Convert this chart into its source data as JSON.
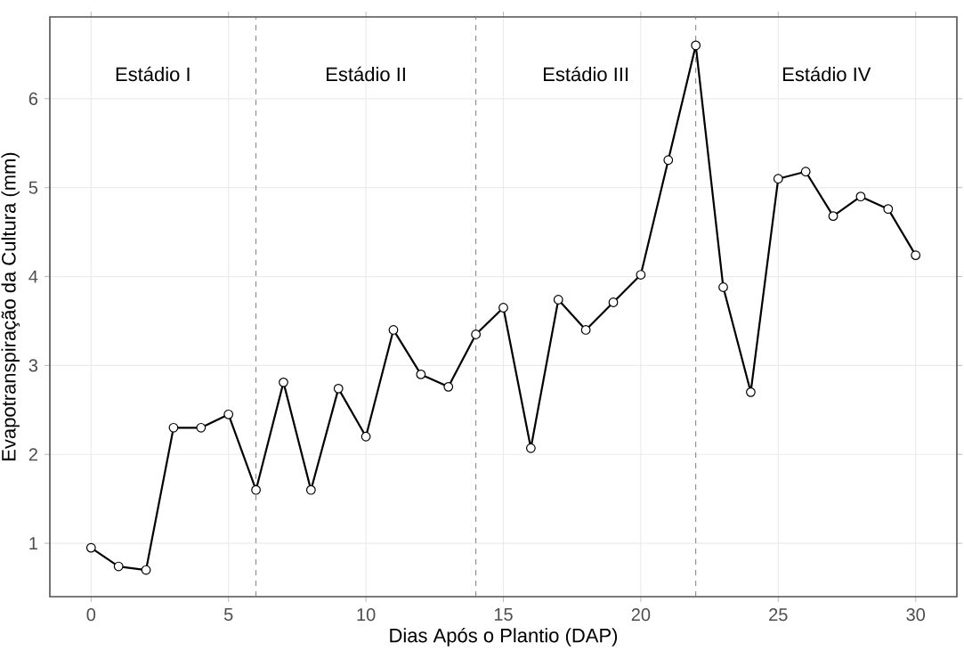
{
  "chart_data": {
    "type": "line",
    "xlabel": "Dias Após o Plantio (DAP)",
    "ylabel": "Evapotranspiração da Cultura (mm)",
    "x": [
      0,
      1,
      2,
      3,
      4,
      5,
      6,
      7,
      8,
      9,
      10,
      11,
      12,
      13,
      14,
      15,
      16,
      17,
      18,
      19,
      20,
      21,
      22,
      23,
      24,
      25,
      26,
      27,
      28,
      29,
      30
    ],
    "series": [
      {
        "color": "#000000",
        "values": [
          0.95,
          0.74,
          0.7,
          2.3,
          2.3,
          2.45,
          1.6,
          2.81,
          1.6,
          2.74,
          2.2,
          3.4,
          2.9,
          2.76,
          3.35,
          3.65,
          2.07,
          3.74,
          3.4,
          3.71,
          4.02,
          5.31,
          6.6,
          3.88,
          2.7,
          5.1,
          5.18,
          4.68,
          4.9,
          4.76,
          4.24
        ]
      }
    ],
    "xlim": [
      -1.5,
      31.5
    ],
    "ylim": [
      0.4,
      6.92
    ],
    "xticks": [
      0,
      5,
      10,
      15,
      20,
      25,
      30
    ],
    "yticks": [
      1,
      2,
      3,
      4,
      5,
      6
    ],
    "grid": true,
    "marker": "circle",
    "line_style": "solid",
    "ref_lines": [
      {
        "axis": "x",
        "value": 6,
        "color": "#808080",
        "line_style": "dashed"
      },
      {
        "axis": "x",
        "value": 14,
        "color": "#808080",
        "line_style": "dashed"
      },
      {
        "axis": "x",
        "value": 22,
        "color": "#808080",
        "line_style": "dashed"
      }
    ],
    "annotations": [
      "Estádio I",
      "Estádio II",
      "Estádio III",
      "Estádio IV"
    ]
  }
}
